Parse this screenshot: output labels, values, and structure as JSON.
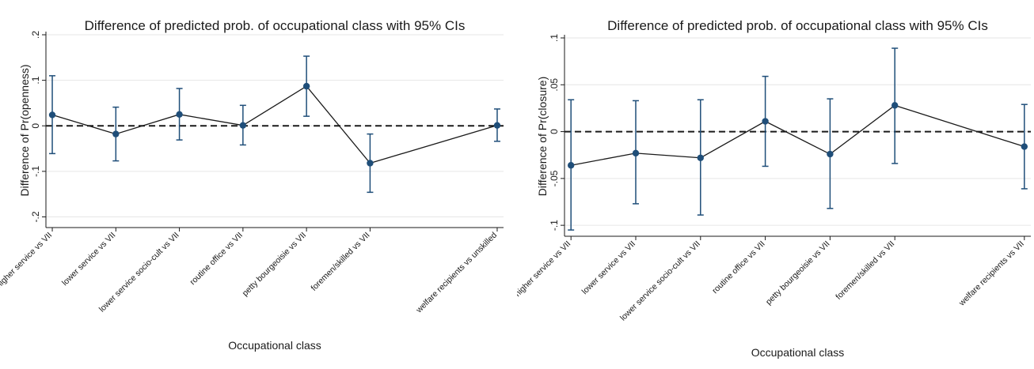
{
  "chart_data": [
    {
      "type": "line",
      "title": "Difference of predicted prob. of occupational class with 95% CIs",
      "xlabel": "Occupational class",
      "ylabel": "Difference of Pr(openness)",
      "ylim": [
        -0.22,
        0.2
      ],
      "yticks": [
        -0.2,
        -0.1,
        0,
        0.1,
        0.2
      ],
      "ytick_labels": [
        "-.2",
        "-.1",
        "0",
        ".1",
        ".2"
      ],
      "reference_line": 0,
      "grid": "horizontal",
      "x": [
        1,
        2,
        3,
        4,
        5,
        6,
        8
      ],
      "xlim": [
        0.9,
        8.1
      ],
      "categories": [
        "higher service vs VII",
        "lower service vs VII",
        "lower service socio-cult vs VII",
        "routine office vs VII",
        "petty bourgeoisie vs VII",
        "foremen/skilled vs VII",
        "welfare recipients vs unskilled"
      ],
      "values": [
        0.024,
        -0.018,
        0.025,
        0.001,
        0.087,
        -0.082,
        0.001
      ],
      "ci_low": [
        -0.061,
        -0.077,
        -0.031,
        -0.042,
        0.021,
        -0.146,
        -0.034
      ],
      "ci_high": [
        0.11,
        0.041,
        0.082,
        0.045,
        0.153,
        -0.018,
        0.037
      ],
      "colors": {
        "marker": "#1f4e79",
        "line": "#1a1a1a",
        "grid": "#e6e6e6"
      }
    },
    {
      "type": "line",
      "title": "Difference of predicted prob. of occupational class with 95% CIs",
      "xlabel": "Occupational class",
      "ylabel": "Difference of Pr(closure)",
      "ylim": [
        -0.11,
        0.1
      ],
      "yticks": [
        -0.1,
        -0.05,
        0,
        0.05,
        0.1
      ],
      "ytick_labels": [
        "-.1",
        "-.05",
        "0",
        ".05",
        ".1"
      ],
      "reference_line": 0,
      "grid": "horizontal",
      "x": [
        1,
        2,
        3,
        4,
        5,
        6,
        8
      ],
      "xlim": [
        0.9,
        8.1
      ],
      "categories": [
        "higher service vs VII",
        "lower service vs VII",
        "lower service socio-cult vs VII",
        "routine office vs VII",
        "petty bourgeoisie vs VII",
        "foremen/skilled vs VII",
        "welfare recipients vs VII"
      ],
      "values": [
        -0.036,
        -0.023,
        -0.028,
        0.011,
        -0.024,
        0.028,
        -0.016
      ],
      "ci_low": [
        -0.105,
        -0.077,
        -0.089,
        -0.037,
        -0.082,
        -0.034,
        -0.061
      ],
      "ci_high": [
        0.034,
        0.033,
        0.034,
        0.059,
        0.035,
        0.089,
        0.029
      ],
      "colors": {
        "marker": "#1f4e79",
        "line": "#1a1a1a",
        "grid": "#e6e6e6"
      }
    }
  ]
}
